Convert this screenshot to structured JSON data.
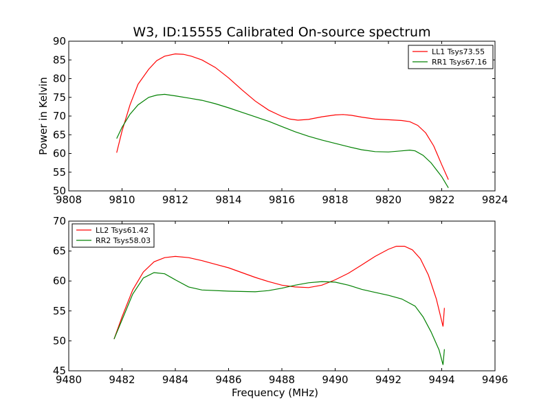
{
  "figure": {
    "title": "W3, ID:15555 Calibrated On-source spectrum"
  },
  "chart_data": [
    {
      "type": "line",
      "title": "W3, ID:15555 Calibrated On-source spectrum",
      "xlabel": "",
      "ylabel": "Power in Kelvin",
      "xlim": [
        9808,
        9824
      ],
      "ylim": [
        50,
        90
      ],
      "xticks": [
        "9808",
        "9810",
        "9812",
        "9814",
        "9816",
        "9818",
        "9820",
        "9822",
        "9824"
      ],
      "yticks": [
        "50",
        "55",
        "60",
        "65",
        "70",
        "75",
        "80",
        "85",
        "90"
      ],
      "grid": false,
      "legend_position": "top-right",
      "series": [
        {
          "name": "LL1 Tsys73.55",
          "color": "#ff0000",
          "x": [
            9809.8,
            9810.0,
            9810.3,
            9810.6,
            9811.0,
            9811.3,
            9811.6,
            9812.0,
            9812.3,
            9812.6,
            9813.0,
            9813.5,
            9814.0,
            9814.5,
            9815.0,
            9815.5,
            9816.0,
            9816.3,
            9816.6,
            9817.0,
            9817.5,
            9818.0,
            9818.3,
            9818.6,
            9819.0,
            9819.5,
            9820.0,
            9820.5,
            9820.8,
            9821.1,
            9821.4,
            9821.7,
            9822.0,
            9822.25
          ],
          "y": [
            60.2,
            66.0,
            73.0,
            78.5,
            82.5,
            84.8,
            86.0,
            86.6,
            86.5,
            86.0,
            85.0,
            83.0,
            80.2,
            77.0,
            74.0,
            71.6,
            69.9,
            69.2,
            68.9,
            69.1,
            69.8,
            70.3,
            70.4,
            70.2,
            69.7,
            69.2,
            69.0,
            68.8,
            68.5,
            67.5,
            65.5,
            62.0,
            57.0,
            53.0
          ]
        },
        {
          "name": "RR1 Tsys67.16",
          "color": "#008000",
          "x": [
            9809.8,
            9810.0,
            9810.3,
            9810.6,
            9811.0,
            9811.3,
            9811.6,
            9812.0,
            9812.5,
            9813.0,
            9813.5,
            9814.0,
            9814.5,
            9815.0,
            9815.5,
            9816.0,
            9816.5,
            9817.0,
            9817.5,
            9818.0,
            9818.5,
            9819.0,
            9819.5,
            9820.0,
            9820.5,
            9820.8,
            9821.0,
            9821.3,
            9821.6,
            9822.0,
            9822.25
          ],
          "y": [
            64.0,
            67.0,
            70.5,
            73.0,
            75.0,
            75.6,
            75.8,
            75.4,
            74.8,
            74.2,
            73.3,
            72.2,
            71.0,
            69.8,
            68.6,
            67.2,
            65.8,
            64.6,
            63.6,
            62.7,
            61.8,
            61.0,
            60.5,
            60.4,
            60.7,
            60.9,
            60.7,
            59.5,
            57.5,
            53.8,
            50.8
          ]
        }
      ]
    },
    {
      "type": "line",
      "title": "",
      "xlabel": "Frequency (MHz)",
      "ylabel": "",
      "xlim": [
        9480,
        9496
      ],
      "ylim": [
        45,
        70
      ],
      "xticks": [
        "9480",
        "9482",
        "9484",
        "9486",
        "9488",
        "9490",
        "9492",
        "9494",
        "9496"
      ],
      "yticks": [
        "45",
        "50",
        "55",
        "60",
        "65",
        "70"
      ],
      "grid": false,
      "legend_position": "top-left",
      "series": [
        {
          "name": "LL2 Tsys61.42",
          "color": "#ff0000",
          "x": [
            9481.7,
            9482.0,
            9482.4,
            9482.8,
            9483.2,
            9483.6,
            9484.0,
            9484.5,
            9485.0,
            9485.5,
            9486.0,
            9486.5,
            9487.0,
            9487.5,
            9488.0,
            9488.5,
            9489.0,
            9489.5,
            9490.0,
            9490.5,
            9491.0,
            9491.5,
            9492.0,
            9492.3,
            9492.6,
            9492.9,
            9493.2,
            9493.5,
            9493.8,
            9494.05,
            9494.1
          ],
          "y": [
            50.3,
            54.0,
            58.5,
            61.5,
            63.2,
            63.9,
            64.1,
            63.9,
            63.4,
            62.8,
            62.2,
            61.4,
            60.6,
            59.9,
            59.3,
            59.0,
            58.9,
            59.3,
            60.2,
            61.3,
            62.7,
            64.1,
            65.3,
            65.8,
            65.8,
            65.2,
            63.7,
            61.0,
            57.0,
            52.4,
            55.5
          ]
        },
        {
          "name": "RR2 Tsys58.03",
          "color": "#008000",
          "x": [
            9481.7,
            9482.0,
            9482.4,
            9482.8,
            9483.2,
            9483.6,
            9484.0,
            9484.5,
            9485.0,
            9486.0,
            9487.0,
            9487.5,
            9488.0,
            9488.5,
            9489.0,
            9489.5,
            9490.0,
            9490.5,
            9491.0,
            9491.5,
            9492.0,
            9492.5,
            9493.0,
            9493.3,
            9493.6,
            9493.9,
            9494.05,
            9494.1
          ],
          "y": [
            50.3,
            53.5,
            57.8,
            60.5,
            61.4,
            61.2,
            60.2,
            59.0,
            58.5,
            58.3,
            58.2,
            58.4,
            58.8,
            59.3,
            59.7,
            59.9,
            59.8,
            59.3,
            58.6,
            58.1,
            57.6,
            57.0,
            55.8,
            54.0,
            51.5,
            48.5,
            46.0,
            48.6
          ]
        }
      ]
    }
  ]
}
